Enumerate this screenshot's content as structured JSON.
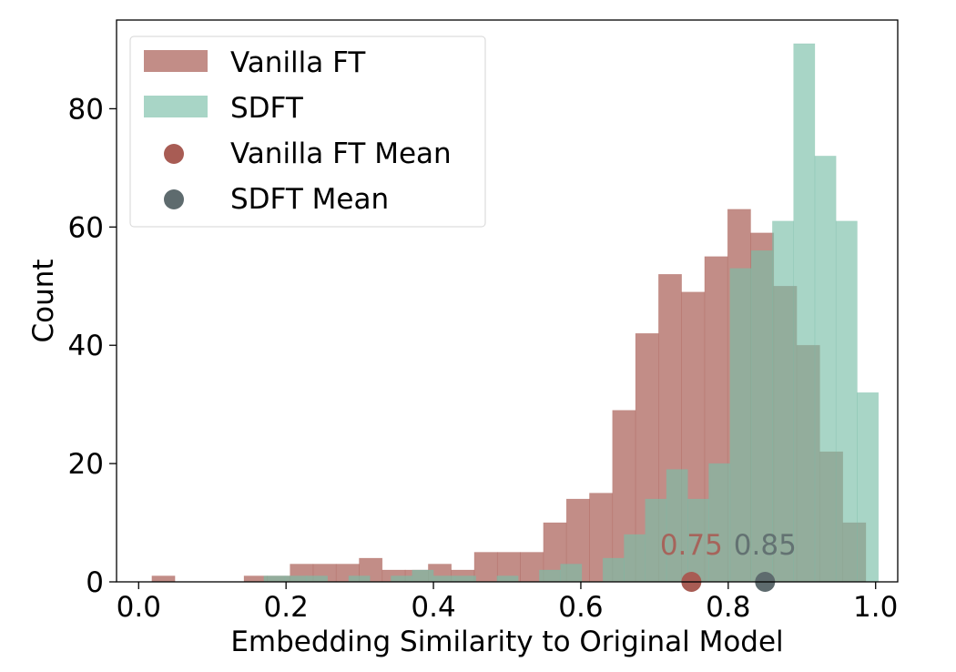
{
  "chart_data": {
    "type": "bar",
    "title": "",
    "xlabel": "Embedding Similarity to Original Model",
    "ylabel": "Count",
    "xlim": [
      -0.03,
      1.03
    ],
    "ylim": [
      0,
      95
    ],
    "xticks": [
      "0.0",
      "0.2",
      "0.4",
      "0.6",
      "0.8",
      "1.0"
    ],
    "yticks": [
      "0",
      "20",
      "40",
      "60",
      "80"
    ],
    "grid": false,
    "legend_position": "top-left",
    "series": [
      {
        "name": "Vanilla FT",
        "color": "#a85c54",
        "opacity": 0.7,
        "bin_start": 0.018,
        "bin_width": 0.03125,
        "values": [
          1,
          0,
          0,
          0,
          1,
          1,
          3,
          3,
          3,
          4,
          2,
          2,
          3,
          2,
          5,
          5,
          5,
          10,
          14,
          15,
          29,
          42,
          52,
          49,
          55,
          63,
          59,
          50,
          40,
          22,
          10
        ]
      },
      {
        "name": "SDFT",
        "color": "#7abea8",
        "opacity": 0.65,
        "bin_start": 0.17,
        "bin_width": 0.02875,
        "values": [
          1,
          1,
          1,
          0,
          1,
          0,
          1,
          2,
          1,
          1,
          0,
          1,
          0,
          2,
          3,
          0,
          4,
          8,
          14,
          19,
          14,
          20,
          53,
          56,
          61,
          91,
          72,
          61,
          32
        ]
      }
    ],
    "means": [
      {
        "name": "Vanilla FT Mean",
        "value": 0.75,
        "label": "0.75",
        "color": "#a85c54"
      },
      {
        "name": "SDFT Mean",
        "value": 0.85,
        "label": "0.85",
        "color": "#5e6b6e"
      }
    ]
  }
}
